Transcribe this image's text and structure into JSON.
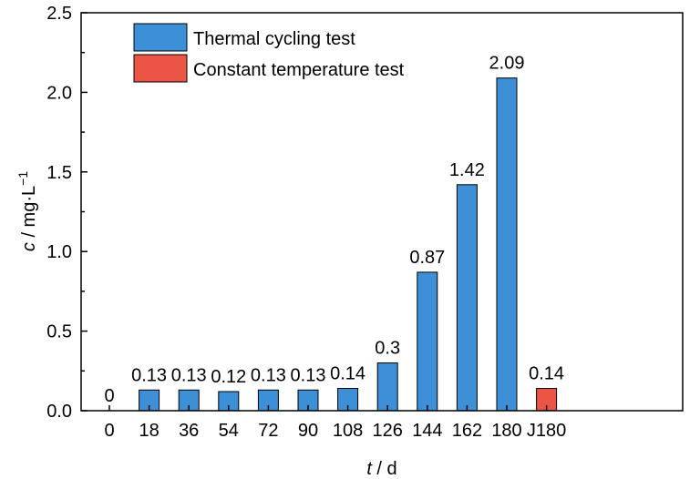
{
  "chart_data": {
    "type": "bar",
    "categories": [
      "0",
      "18",
      "36",
      "54",
      "72",
      "90",
      "108",
      "126",
      "144",
      "162",
      "180",
      "J180"
    ],
    "values": [
      0,
      0.13,
      0.13,
      0.12,
      0.13,
      0.13,
      0.14,
      0.3,
      0.87,
      1.42,
      2.09,
      0.14
    ],
    "value_labels": [
      "0",
      "0.13",
      "0.13",
      "0.12",
      "0.13",
      "0.13",
      "0.14",
      "0.3",
      "0.87",
      "1.42",
      "2.09",
      "0.14"
    ],
    "bar_series": [
      0,
      0,
      0,
      0,
      0,
      0,
      0,
      0,
      0,
      0,
      0,
      1
    ],
    "series": [
      {
        "name": "Thermal cycling test",
        "color": "#3d8fd6"
      },
      {
        "name": "Constant temperature test",
        "color": "#ec5546"
      }
    ],
    "xlabel_italic": "t",
    "xlabel_rest": " / d",
    "ylabel_italic": "c",
    "ylabel_rest": " / mg·L",
    "ylabel_sup": "−1",
    "ylim": [
      0,
      2.5
    ],
    "yticks": [
      "0.0",
      "0.5",
      "1.0",
      "1.5",
      "2.0",
      "2.5"
    ],
    "legend_position": "top-left",
    "grid": false
  }
}
